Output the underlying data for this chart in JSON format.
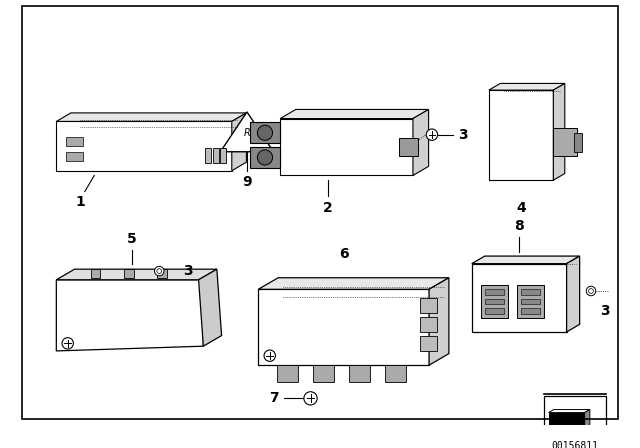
{
  "background_color": "#ffffff",
  "border_color": "#000000",
  "diagram_id": "00156811",
  "line_color": "#000000",
  "text_color": "#000000",
  "fig_w": 6.4,
  "fig_h": 4.48
}
